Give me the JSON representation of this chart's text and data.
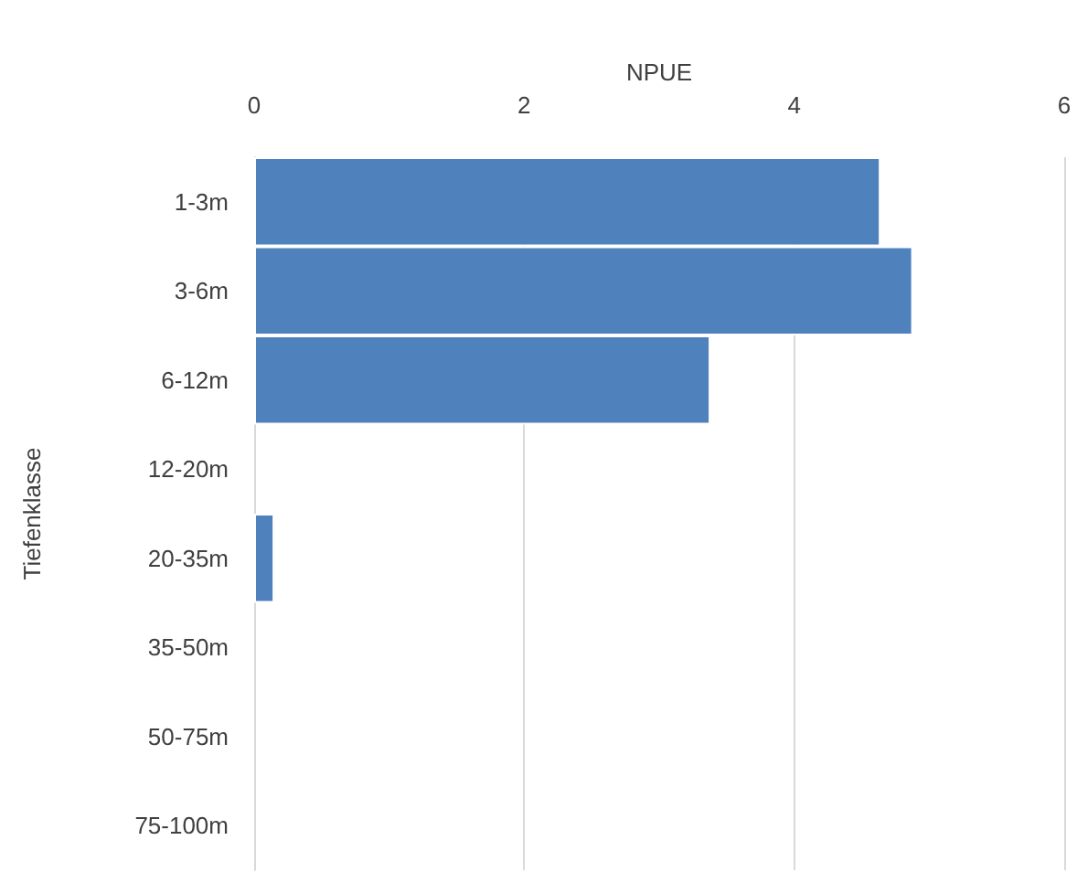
{
  "chart_data": {
    "type": "bar",
    "orientation": "horizontal",
    "xlabel": "NPUE",
    "ylabel": "Tiefenklasse",
    "categories": [
      "1-3m",
      "3-6m",
      "6-12m",
      "12-20m",
      "20-35m",
      "35-50m",
      "50-75m",
      "75-100m"
    ],
    "series": [
      {
        "color": "#4f81bd",
        "values": [
          4.64,
          4.88,
          3.38,
          null,
          0.15,
          null,
          null,
          null
        ]
      }
    ],
    "xlim": [
      0,
      6
    ],
    "xticks": [
      0,
      2,
      4,
      6
    ],
    "grid": "x"
  }
}
